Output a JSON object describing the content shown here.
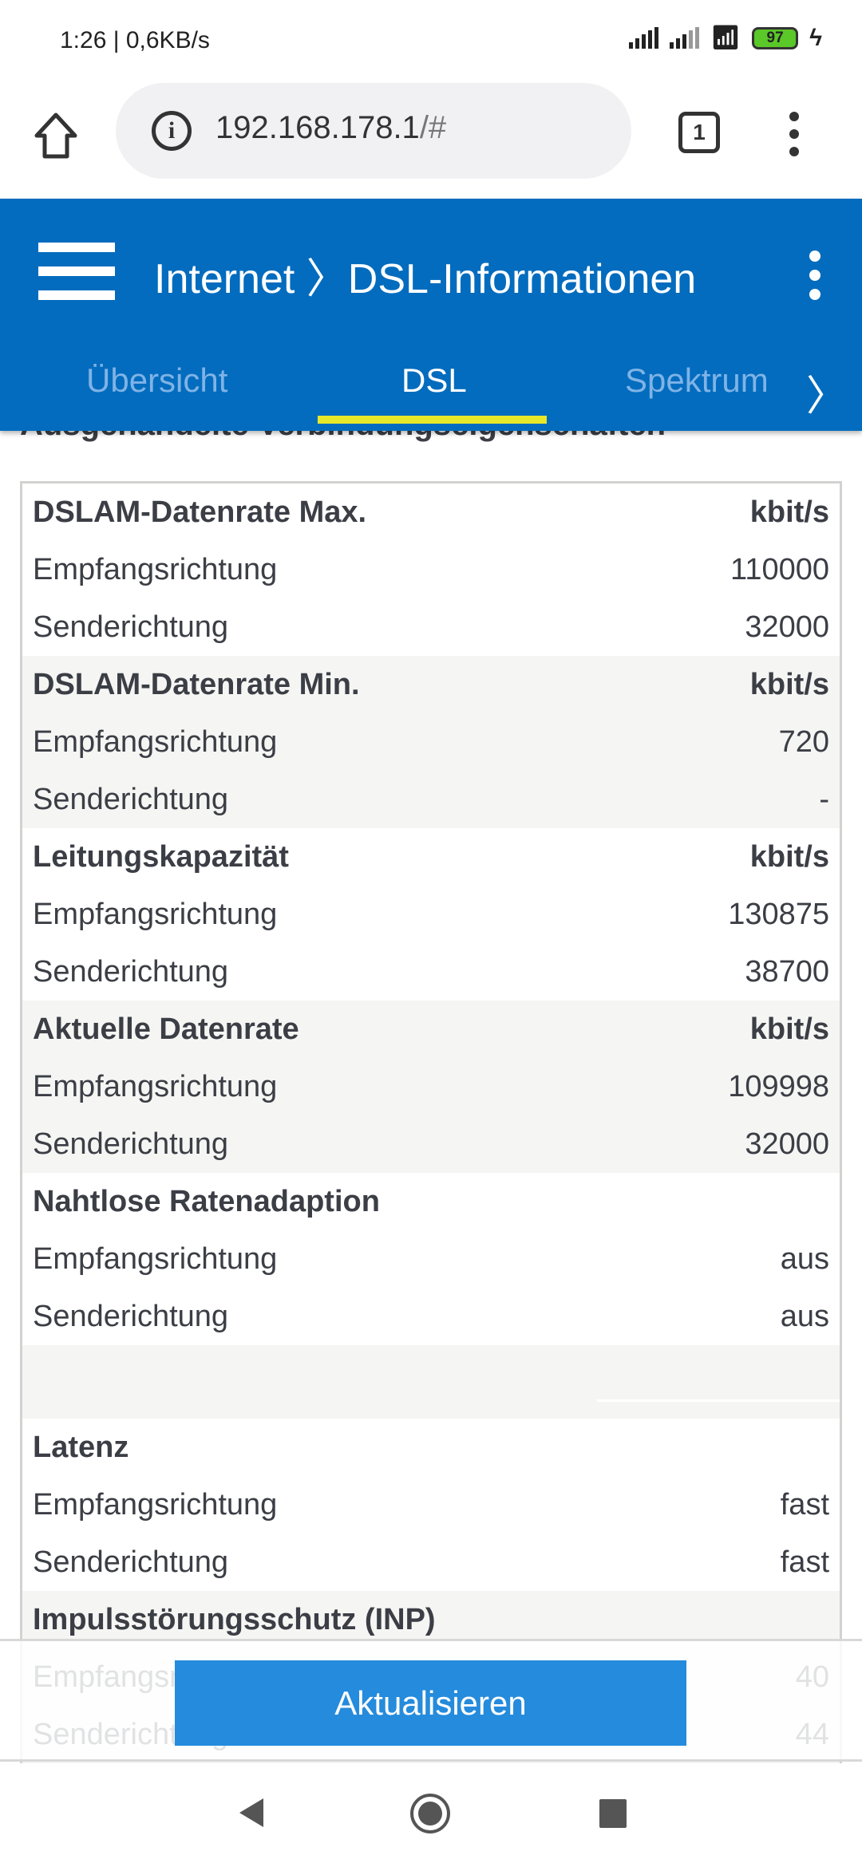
{
  "status_bar": {
    "time": "1:26 | 0,6KB/s",
    "battery": "97"
  },
  "browser": {
    "url_main": "192.168.178.1",
    "url_hash": "/#",
    "tab_count": "1"
  },
  "header": {
    "title": "Internet 〉DSL-Informationen"
  },
  "tabs": [
    {
      "label": "Übersicht",
      "active": false
    },
    {
      "label": "DSL",
      "active": true
    },
    {
      "label": "Spektrum",
      "active": false
    }
  ],
  "accent_colors": {
    "header": "#036cbe",
    "tab_indicator": "#e8e82a",
    "button": "#258bdc"
  },
  "section_heading": "Ausgehandelte Verbindungseigenschaften",
  "table": [
    {
      "rows": [
        [
          "DSLAM-Datenrate Max.",
          "kbit/s"
        ],
        [
          "Empfangsrichtung",
          "110000"
        ],
        [
          "Senderichtung",
          "32000"
        ]
      ]
    },
    {
      "rows": [
        [
          "DSLAM-Datenrate Min.",
          "kbit/s"
        ],
        [
          "Empfangsrichtung",
          "720"
        ],
        [
          "Senderichtung",
          "-"
        ]
      ]
    },
    {
      "rows": [
        [
          "Leitungskapazität",
          "kbit/s"
        ],
        [
          "Empfangsrichtung",
          "130875"
        ],
        [
          "Senderichtung",
          "38700"
        ]
      ]
    },
    {
      "rows": [
        [
          "Aktuelle Datenrate",
          "kbit/s"
        ],
        [
          "Empfangsrichtung",
          "109998"
        ],
        [
          "Senderichtung",
          "32000"
        ]
      ]
    },
    {
      "rows": [
        [
          "Nahtlose Ratenadaption",
          ""
        ],
        [
          "Empfangsrichtung",
          "aus"
        ],
        [
          "Senderichtung",
          "aus"
        ]
      ]
    },
    {
      "rows": [
        [
          "Latenz",
          ""
        ],
        [
          "Empfangsrichtung",
          "fast"
        ],
        [
          "Senderichtung",
          "fast"
        ]
      ]
    },
    {
      "rows": [
        [
          "Impulsstörungsschutz (INP)",
          ""
        ],
        [
          "Empfangsrichtung",
          "40"
        ],
        [
          "Senderichtung",
          "44"
        ]
      ]
    }
  ],
  "refresh_button": "Aktualisieren"
}
